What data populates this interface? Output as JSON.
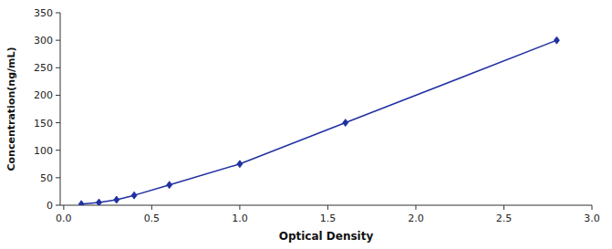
{
  "chart_data": {
    "type": "line",
    "x": [
      0.1,
      0.2,
      0.3,
      0.4,
      0.6,
      1.0,
      1.6,
      2.8
    ],
    "values": [
      2,
      5,
      10,
      18,
      37,
      75,
      150,
      300
    ],
    "color": "#2030a0",
    "marker": "diamond",
    "xlabel": "Optical Density",
    "ylabel": "Concentration(ng/mL)",
    "xlim": [
      -0.02,
      3.0
    ],
    "ylim": [
      0,
      350
    ],
    "xticks": [
      {
        "value": 0,
        "label": "0.0"
      },
      0.5,
      {
        "value": 1.0,
        "label": "1.0"
      },
      1.5,
      {
        "value": 2.0,
        "label": "2.0"
      },
      2.5,
      {
        "value": 3.0,
        "label": "3.0"
      }
    ],
    "yticks": [
      0,
      50,
      100,
      150,
      200,
      250,
      300,
      350
    ]
  }
}
